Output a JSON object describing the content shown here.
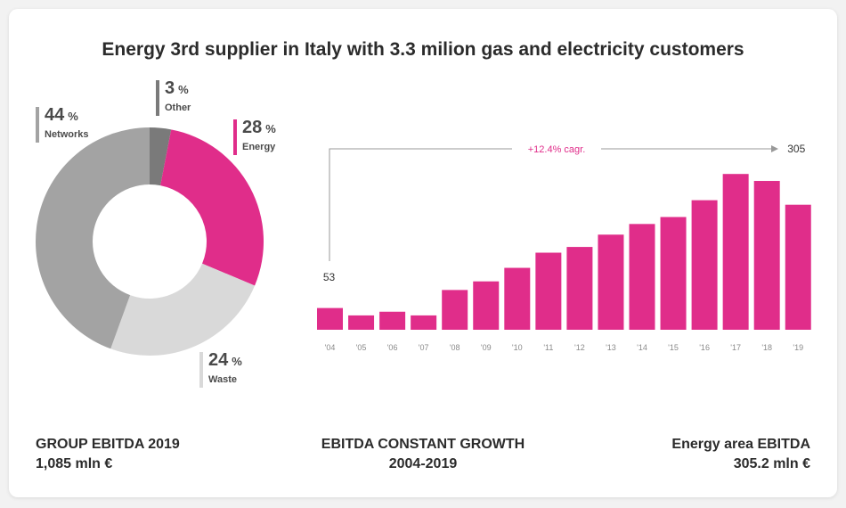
{
  "title": "Energy 3rd supplier in Italy with 3.3 milion gas and electricity customers",
  "colors": {
    "energy": "#e02d8a",
    "networks": "#a3a3a3",
    "waste": "#d9d9d9",
    "other": "#7a7a7a"
  },
  "donut_labels": [
    {
      "key": "networks",
      "pct": "44",
      "unit": "%",
      "name": "Networks"
    },
    {
      "key": "other",
      "pct": "3",
      "unit": "%",
      "name": "Other"
    },
    {
      "key": "energy",
      "pct": "28",
      "unit": "%",
      "name": "Energy"
    },
    {
      "key": "waste",
      "pct": "24",
      "unit": "%",
      "name": "Waste"
    }
  ],
  "chart_data": [
    {
      "type": "pie",
      "title": "",
      "slices": [
        {
          "label": "Other",
          "value": 3
        },
        {
          "label": "Energy",
          "value": 28
        },
        {
          "label": "Waste",
          "value": 24
        },
        {
          "label": "Networks",
          "value": 44
        }
      ],
      "unit": "%"
    },
    {
      "type": "bar",
      "title": "",
      "categories": [
        "'04",
        "'05",
        "'06",
        "'07",
        "'08",
        "'09",
        "'10",
        "'11",
        "'12",
        "'13",
        "'14",
        "'15",
        "'16",
        "'17",
        "'18",
        "'19"
      ],
      "values": [
        53,
        35,
        44,
        35,
        97,
        118,
        151,
        188,
        202,
        232,
        258,
        275,
        316,
        380,
        363,
        305
      ],
      "ylim": [
        0,
        450
      ],
      "value_labels": {
        "first": "53",
        "last": "305"
      },
      "annotation": "+12.4% cagr."
    }
  ],
  "footer": {
    "left": {
      "line1": "GROUP EBITDA 2019",
      "line2": "1,085 mln €"
    },
    "center": {
      "line1": "EBITDA CONSTANT GROWTH",
      "line2": "2004-2019"
    },
    "right": {
      "line1": "Energy area EBITDA",
      "line2": "305.2 mln €"
    }
  }
}
